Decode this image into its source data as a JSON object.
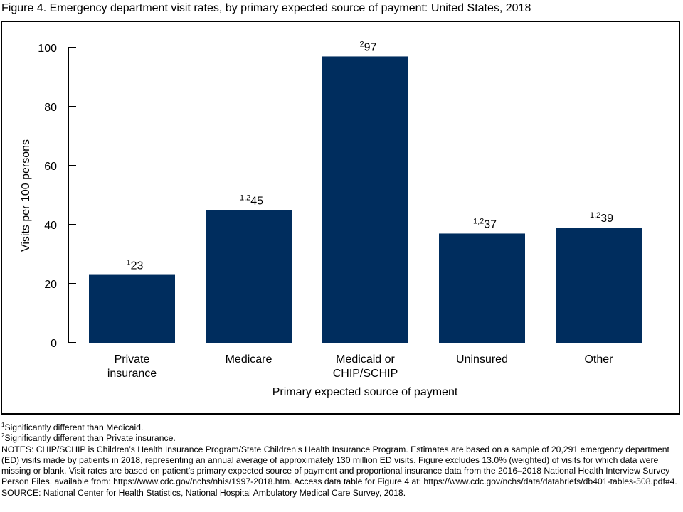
{
  "chart_data": {
    "type": "bar",
    "title": "Figure 4. Emergency department visit rates, by primary expected source of payment: United States, 2018",
    "xlabel": "Primary expected source of payment",
    "ylabel": "Visits per 100 persons",
    "ylim": [
      0,
      100
    ],
    "yticks": [
      0,
      20,
      40,
      60,
      80,
      100
    ],
    "categories": [
      [
        "Private",
        "insurance"
      ],
      [
        "Medicare"
      ],
      [
        "Medicaid or",
        "CHIP/SCHIP"
      ],
      [
        "Uninsured"
      ],
      [
        "Other"
      ]
    ],
    "values": [
      23,
      45,
      97,
      37,
      39
    ],
    "value_superscripts": [
      "1",
      "1,2",
      "2",
      "1,2",
      "1,2"
    ],
    "bar_color": "#002d5e",
    "grid": false
  },
  "footnotes": {
    "f1_mark": "1",
    "f1": "Significantly different than Medicaid.",
    "f2_mark": "2",
    "f2": "Significantly different than Private insurance.",
    "notes": "NOTES: CHIP/SCHIP is Children’s Health Insurance Program/State Children’s Health Insurance Program. Estimates are based on a sample of 20,291 emergency department (ED) visits made by patients in 2018, representing an annual average of approximately 130 million ED visits. Figure excludes 13.0% (weighted) of visits for which data were missing or blank. Visit rates are based on patient’s primary expected source of payment and proportional insurance data from the 2016–2018 National Health Interview Survey Person Files, available from: https://www.cdc.gov/nchs/nhis/1997-2018.htm. Access data table for Figure 4 at: https://www.cdc.gov/nchs/data/databriefs/db401-tables-508.pdf#4.",
    "source": "SOURCE: National Center for Health Statistics, National Hospital Ambulatory Medical Care Survey, 2018."
  }
}
